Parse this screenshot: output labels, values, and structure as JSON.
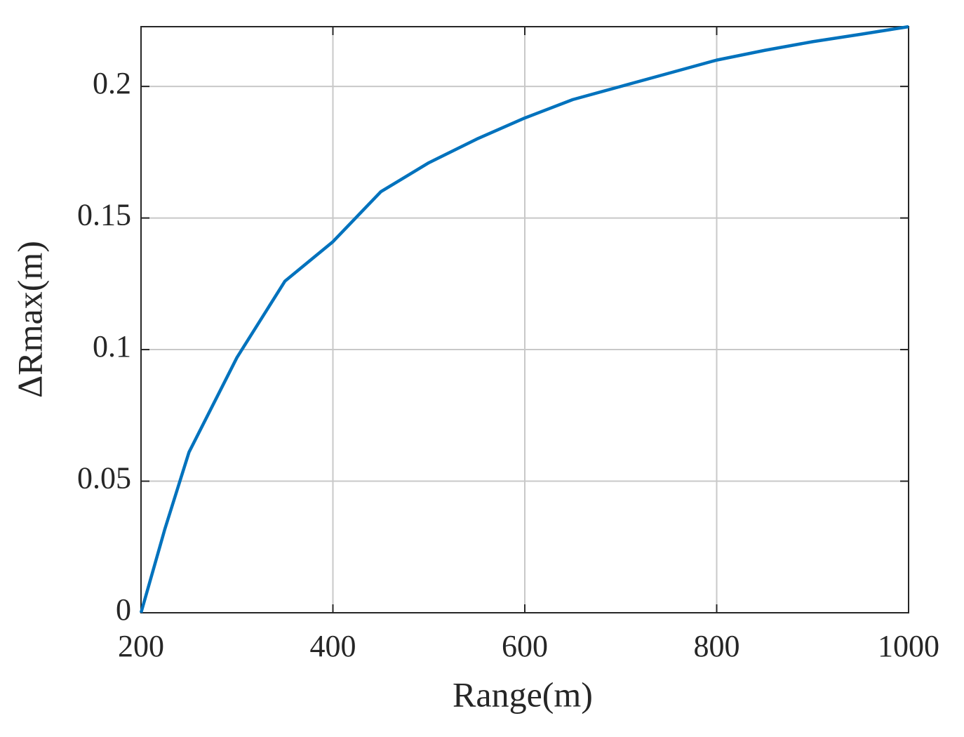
{
  "chart_data": {
    "type": "line",
    "xlabel": "Range(m)",
    "ylabel": "ΔRmax(m)",
    "x": [
      200,
      225,
      250,
      300,
      350,
      400,
      450,
      500,
      550,
      600,
      650,
      700,
      750,
      800,
      850,
      900,
      950,
      1000
    ],
    "series": [
      {
        "color": "#0072bd",
        "values": [
          0,
          0.032,
          0.061,
          0.097,
          0.126,
          0.141,
          0.16,
          0.171,
          0.18,
          0.188,
          0.195,
          0.2,
          0.205,
          0.21,
          0.2137,
          0.217,
          0.2198,
          0.2227
        ]
      }
    ],
    "xlim": [
      200,
      1000
    ],
    "xticks": [
      200,
      400,
      600,
      800,
      1000
    ],
    "ylim": [
      0,
      0.2227
    ],
    "yticks": [
      0,
      0.05,
      0.1,
      0.15,
      0.2
    ],
    "grid": true
  }
}
